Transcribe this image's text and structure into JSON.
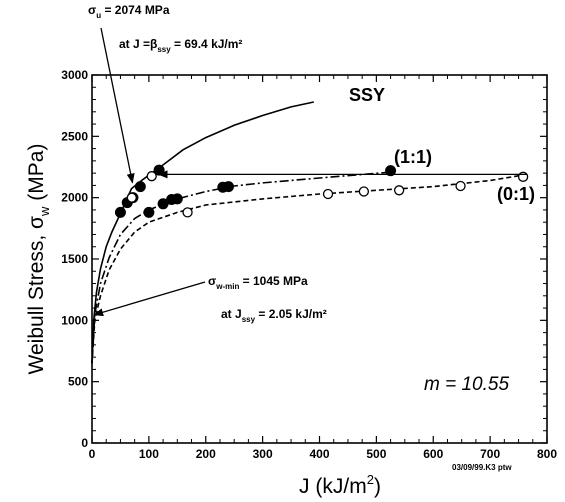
{
  "chart_data": {
    "type": "scatter",
    "title": "",
    "xlabel": "J (kJ/m",
    "xlabel_sup": "2",
    "xlabel_close": ")",
    "ylabel": "Weibull Stress, σ",
    "ylabel_sub": "w",
    "ylabel_unit": "(MPa)",
    "xlim": [
      0,
      800
    ],
    "ylim": [
      0,
      3000
    ],
    "x_ticks": [
      0,
      100,
      200,
      300,
      400,
      500,
      600,
      700,
      800
    ],
    "y_ticks": [
      0,
      500,
      1000,
      1500,
      2000,
      2500,
      3000
    ],
    "grid": false,
    "series": [
      {
        "name": "SSY",
        "style": "solid",
        "curve": [
          [
            0,
            650
          ],
          [
            3,
            1000
          ],
          [
            8,
            1230
          ],
          [
            15,
            1420
          ],
          [
            25,
            1600
          ],
          [
            35,
            1720
          ],
          [
            50,
            1870
          ],
          [
            69.4,
            2074
          ],
          [
            90,
            2150
          ],
          [
            120,
            2250
          ],
          [
            160,
            2390
          ],
          [
            200,
            2490
          ],
          [
            250,
            2590
          ],
          [
            300,
            2670
          ],
          [
            350,
            2740
          ],
          [
            390,
            2780
          ]
        ],
        "points_filled": [
          [
            50,
            1880
          ],
          [
            62,
            1960
          ],
          [
            72,
            2000
          ],
          [
            85,
            2090
          ],
          [
            118,
            2225
          ]
        ],
        "points_open": [
          [
            70,
            2000
          ],
          [
            105,
            2175
          ]
        ]
      },
      {
        "name": "(1:1)",
        "style": "dash-dot",
        "curve": [
          [
            0,
            650
          ],
          [
            5,
            1050
          ],
          [
            15,
            1300
          ],
          [
            30,
            1510
          ],
          [
            50,
            1700
          ],
          [
            75,
            1830
          ],
          [
            100,
            1900
          ],
          [
            150,
            1990
          ],
          [
            200,
            2050
          ],
          [
            250,
            2095
          ],
          [
            300,
            2120
          ],
          [
            400,
            2160
          ],
          [
            530,
            2210
          ]
        ],
        "points_filled": [
          [
            100,
            1880
          ],
          [
            125,
            1950
          ],
          [
            140,
            1985
          ],
          [
            150,
            1990
          ],
          [
            230,
            2085
          ],
          [
            240,
            2090
          ],
          [
            525,
            2220
          ]
        ]
      },
      {
        "name": "(0:1)",
        "style": "dashed",
        "curve": [
          [
            0,
            650
          ],
          [
            5,
            1000
          ],
          [
            15,
            1200
          ],
          [
            30,
            1410
          ],
          [
            50,
            1580
          ],
          [
            75,
            1720
          ],
          [
            100,
            1800
          ],
          [
            150,
            1880
          ],
          [
            200,
            1940
          ],
          [
            300,
            1990
          ],
          [
            400,
            2030
          ],
          [
            500,
            2060
          ],
          [
            600,
            2090
          ],
          [
            700,
            2140
          ],
          [
            765,
            2190
          ]
        ],
        "points_open": [
          [
            168,
            1880
          ],
          [
            415,
            2030
          ],
          [
            478,
            2050
          ],
          [
            540,
            2060
          ],
          [
            648,
            2095
          ],
          [
            758,
            2170
          ]
        ]
      }
    ],
    "annotations": [
      {
        "text": "σ",
        "sub": "u",
        "rest": " = 2074 MPa",
        "line2": "at J =β",
        "line2_sub": "ssy",
        "line2_rest": " = 69.4 kJ/m²",
        "target": [
          69.4,
          2074
        ]
      },
      {
        "text": "σ",
        "sub": "w-min",
        "rest": " = 1045 MPa",
        "line2": "at J",
        "line2_sub": "ssy",
        "line2_rest": " = 2.05 kJ/m²",
        "target": [
          2.05,
          1045
        ]
      }
    ],
    "reference_arrow": {
      "from": [
        765,
        2190
      ],
      "to": [
        117,
        2190
      ]
    },
    "parameter": "m = 10.55",
    "stamp": "03/09/99.K3 ptw"
  }
}
